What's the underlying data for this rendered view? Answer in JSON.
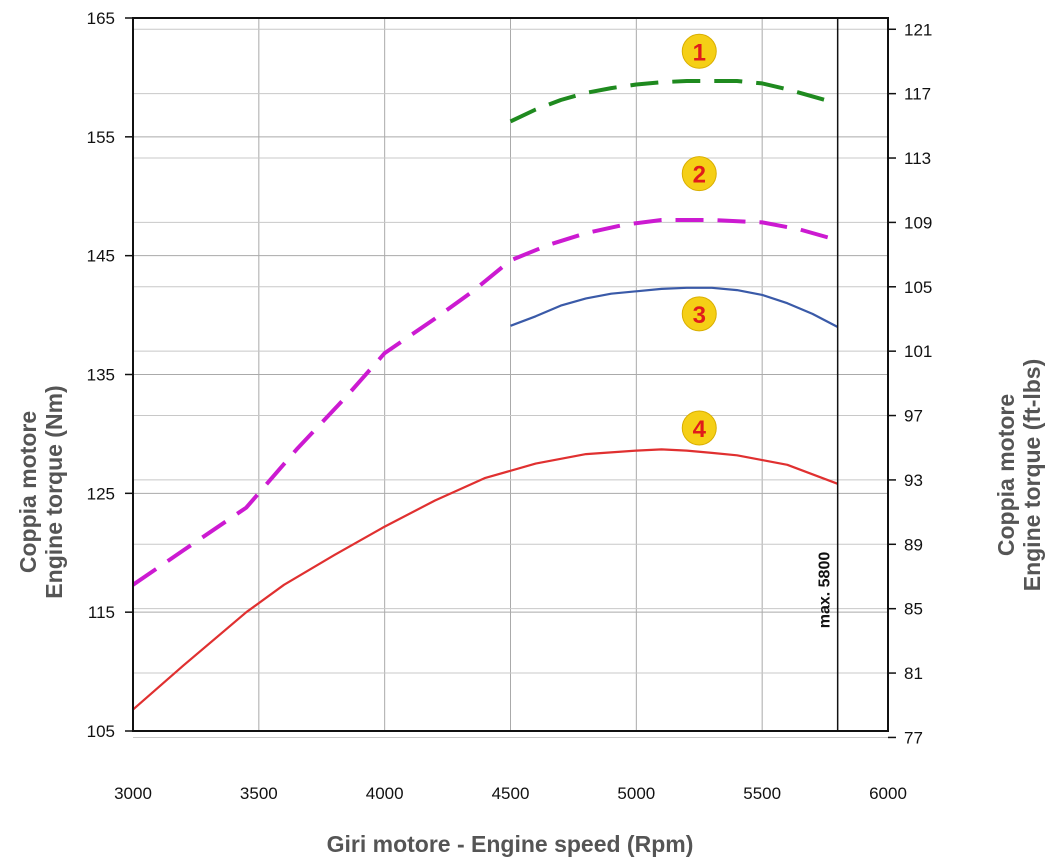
{
  "chart_data": {
    "type": "line",
    "xlabel": "Giri motore - Engine speed (Rpm)",
    "ylabel_left_line1": "Coppia motore",
    "ylabel_left_line2": "Engine torque (Nm)",
    "ylabel_right_line1": "Coppia motore",
    "ylabel_right_line2": "Engine torque (ft-lbs)",
    "xlim": [
      3000,
      6000
    ],
    "ylim_left": [
      105,
      165
    ],
    "ylim_right": [
      77.4,
      121.7
    ],
    "x_ticks": [
      3000,
      3500,
      4000,
      4500,
      5000,
      5500,
      6000
    ],
    "y_left_ticks": [
      105,
      115,
      125,
      135,
      145,
      155,
      165
    ],
    "y_right_ticks": [
      77,
      81,
      85,
      89,
      93,
      97,
      101,
      105,
      109,
      113,
      117,
      121
    ],
    "grid": true,
    "limit_line": {
      "x": 5800,
      "label": "max. 5800"
    },
    "series": [
      {
        "name": "1",
        "color": "#1f8a1f",
        "dash": "long",
        "label_at": [
          5250,
          162.2
        ],
        "x": [
          4500,
          4600,
          4700,
          4800,
          4900,
          5000,
          5100,
          5200,
          5300,
          5400,
          5500,
          5600,
          5700,
          5800
        ],
        "y": [
          156.3,
          157.3,
          158.1,
          158.7,
          159.1,
          159.4,
          159.6,
          159.7,
          159.7,
          159.7,
          159.5,
          159.0,
          158.4,
          157.8
        ]
      },
      {
        "name": "2",
        "color": "#cc1ad1",
        "dash": "long",
        "label_at": [
          5250,
          151.9
        ],
        "x": [
          3000,
          3200,
          3450,
          3650,
          3850,
          4000,
          4200,
          4350,
          4500,
          4650,
          4800,
          4950,
          5100,
          5300,
          5500,
          5650,
          5800
        ],
        "y": [
          117.3,
          120.2,
          123.8,
          128.7,
          133.2,
          136.8,
          139.7,
          142.0,
          144.6,
          145.9,
          146.9,
          147.6,
          148.0,
          148.0,
          147.8,
          147.2,
          146.3
        ]
      },
      {
        "name": "3",
        "color": "#3a5aa8",
        "dash": "solid",
        "label_at": [
          5250,
          140.1
        ],
        "x": [
          4500,
          4600,
          4700,
          4800,
          4900,
          5000,
          5100,
          5200,
          5300,
          5400,
          5500,
          5600,
          5700,
          5800
        ],
        "y": [
          139.1,
          139.9,
          140.8,
          141.4,
          141.8,
          142.0,
          142.2,
          142.3,
          142.3,
          142.1,
          141.7,
          141.0,
          140.1,
          139.0
        ]
      },
      {
        "name": "4",
        "color": "#e03030",
        "dash": "solid",
        "label_at": [
          5250,
          130.5
        ],
        "x": [
          3000,
          3200,
          3450,
          3600,
          3800,
          4000,
          4200,
          4400,
          4600,
          4800,
          5000,
          5100,
          5200,
          5300,
          5400,
          5500,
          5600,
          5700,
          5800
        ],
        "y": [
          106.8,
          110.5,
          115.0,
          117.3,
          119.8,
          122.2,
          124.4,
          126.3,
          127.5,
          128.3,
          128.6,
          128.7,
          128.6,
          128.4,
          128.2,
          127.8,
          127.4,
          126.6,
          125.8
        ]
      }
    ]
  }
}
